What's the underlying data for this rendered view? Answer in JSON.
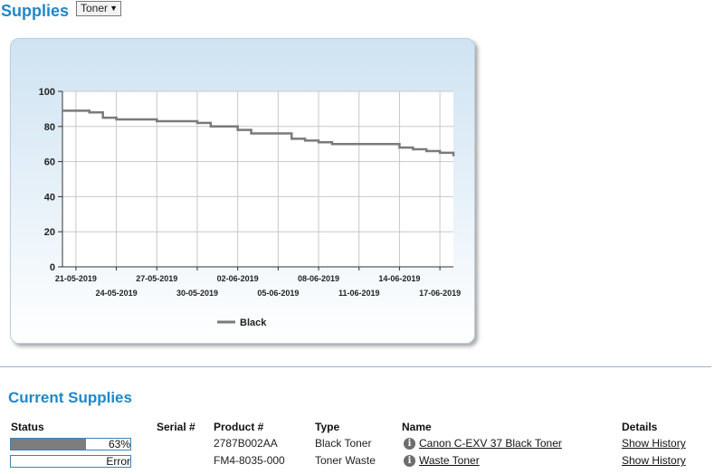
{
  "header": {
    "title": "Supplies"
  },
  "supply_type_select": {
    "value": "Toner"
  },
  "chart_data": {
    "type": "line",
    "title": "",
    "xlabel": "",
    "ylabel": "",
    "ylim": [
      0,
      100
    ],
    "yticks": [
      0,
      20,
      40,
      60,
      80,
      100
    ],
    "xlim": [
      "2019-05-20",
      "2019-06-18"
    ],
    "x_tick_labels_row1": [
      "21-05-2019",
      "27-05-2019",
      "02-06-2019",
      "08-06-2019",
      "14-06-2019"
    ],
    "x_tick_labels_row2": [
      "24-05-2019",
      "30-05-2019",
      "05-06-2019",
      "11-06-2019",
      "17-06-2019"
    ],
    "grid": true,
    "legend": "bottom-center",
    "series": [
      {
        "name": "Black",
        "color": "#7a7a7a",
        "points": [
          [
            "2019-05-20",
            89
          ],
          [
            "2019-05-21",
            89
          ],
          [
            "2019-05-22",
            88
          ],
          [
            "2019-05-23",
            85
          ],
          [
            "2019-05-24",
            84
          ],
          [
            "2019-05-26",
            84
          ],
          [
            "2019-05-27",
            83
          ],
          [
            "2019-05-29",
            83
          ],
          [
            "2019-05-30",
            82
          ],
          [
            "2019-05-31",
            80
          ],
          [
            "2019-06-01",
            80
          ],
          [
            "2019-06-02",
            78
          ],
          [
            "2019-06-03",
            76
          ],
          [
            "2019-06-05",
            76
          ],
          [
            "2019-06-06",
            73
          ],
          [
            "2019-06-07",
            72
          ],
          [
            "2019-06-08",
            71
          ],
          [
            "2019-06-09",
            70
          ],
          [
            "2019-06-13",
            70
          ],
          [
            "2019-06-14",
            68
          ],
          [
            "2019-06-15",
            67
          ],
          [
            "2019-06-16",
            66
          ],
          [
            "2019-06-17",
            65
          ],
          [
            "2019-06-18",
            63
          ]
        ]
      }
    ]
  },
  "current_supplies": {
    "title": "Current Supplies",
    "columns": {
      "status": "Status",
      "serial": "Serial #",
      "product": "Product #",
      "type": "Type",
      "name": "Name",
      "details": "Details"
    },
    "rows": [
      {
        "status_text": "63%",
        "status_level": 0.63,
        "serial": "",
        "product": "2787B002AA",
        "type": "Black Toner",
        "name": "Canon C-EXV 37 Black Toner",
        "details": "Show History",
        "info_icon": "info-icon"
      },
      {
        "status_text": "Error",
        "status_level": 0,
        "serial": "",
        "product": "FM4-8035-000",
        "type": "Toner Waste",
        "name": "Waste Toner",
        "details": "Show History",
        "info_icon": "info-icon"
      }
    ]
  }
}
